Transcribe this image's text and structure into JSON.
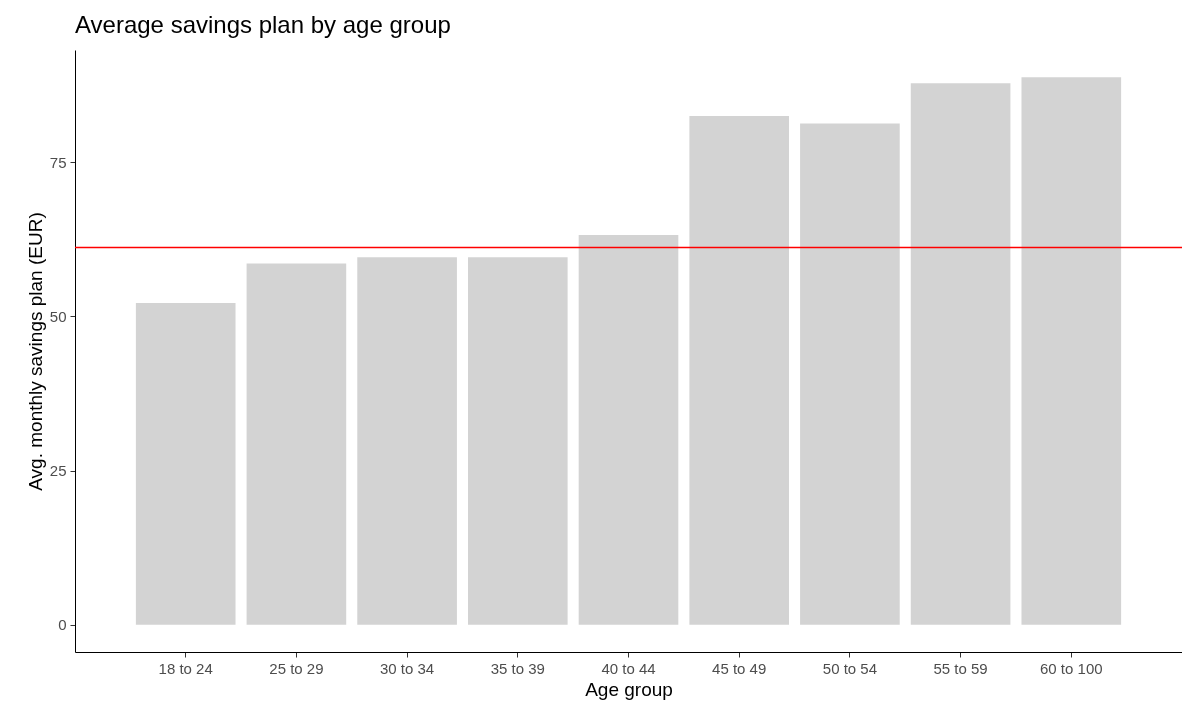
{
  "chart_data": {
    "type": "bar",
    "title": "Average savings plan by age group",
    "xlabel": "Age group",
    "ylabel": "Avg. monthly savings plan (EUR)",
    "categories": [
      "18 to 24",
      "25 to 29",
      "30 to 34",
      "35 to 39",
      "40 to 44",
      "45 to 49",
      "50 to 54",
      "55 to 59",
      "60 to 100"
    ],
    "values": [
      52.2,
      58.6,
      59.6,
      59.6,
      63.2,
      82.5,
      81.3,
      87.8,
      88.8
    ],
    "color": "#d3d3d3",
    "ylim": [
      -4.4,
      93.2
    ],
    "yticks": [
      0,
      25,
      50,
      75
    ],
    "grid": false,
    "ref_lines": [
      {
        "axis": "y",
        "value": 61.2,
        "color": "#ff0000"
      }
    ]
  }
}
